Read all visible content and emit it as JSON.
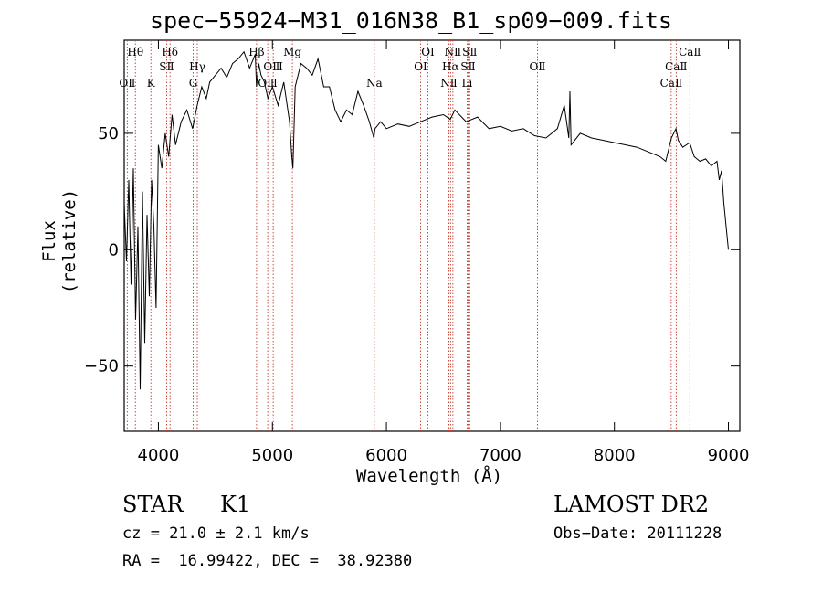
{
  "chart_data": {
    "type": "line",
    "title": "spec−55924−M31_016N38_B1_sp09−009.fits",
    "xlabel": "Wavelength (Å)",
    "ylabel": "Flux (relative)",
    "xlim": [
      3700,
      9100
    ],
    "ylim": [
      -78,
      90
    ],
    "xticks": [
      4000,
      5000,
      6000,
      7000,
      8000,
      9000
    ],
    "yticks": [
      -50,
      0,
      50
    ],
    "ytick_labels": [
      "−50",
      "0",
      "50"
    ],
    "series": [
      {
        "name": "flux",
        "x": [
          3700,
          3720,
          3740,
          3760,
          3780,
          3800,
          3820,
          3840,
          3860,
          3880,
          3900,
          3920,
          3940,
          3960,
          3980,
          4000,
          4030,
          4060,
          4090,
          4120,
          4150,
          4200,
          4250,
          4300,
          4340,
          4380,
          4420,
          4450,
          4500,
          4550,
          4600,
          4650,
          4700,
          4750,
          4800,
          4850,
          4860,
          4880,
          4900,
          4930,
          4960,
          5000,
          5050,
          5100,
          5150,
          5170,
          5180,
          5200,
          5250,
          5300,
          5350,
          5400,
          5450,
          5500,
          5550,
          5600,
          5650,
          5700,
          5750,
          5800,
          5850,
          5890,
          5900,
          5950,
          6000,
          6100,
          6200,
          6300,
          6400,
          6500,
          6560,
          6600,
          6700,
          6800,
          6900,
          7000,
          7100,
          7200,
          7300,
          7400,
          7500,
          7560,
          7600,
          7610,
          7620,
          7700,
          7800,
          7900,
          8000,
          8100,
          8200,
          8300,
          8400,
          8450,
          8500,
          8540,
          8560,
          8600,
          8660,
          8700,
          8750,
          8800,
          8850,
          8900,
          8920,
          8940,
          8960,
          8980,
          9000
        ],
        "y": [
          20,
          -5,
          30,
          -15,
          35,
          -30,
          10,
          -60,
          25,
          -40,
          15,
          -20,
          30,
          10,
          -25,
          45,
          35,
          50,
          40,
          58,
          45,
          55,
          60,
          52,
          62,
          70,
          65,
          72,
          75,
          78,
          74,
          80,
          82,
          85,
          78,
          84,
          70,
          80,
          75,
          72,
          65,
          70,
          62,
          72,
          55,
          40,
          35,
          70,
          80,
          78,
          75,
          82,
          70,
          70,
          60,
          55,
          60,
          58,
          68,
          62,
          55,
          48,
          52,
          55,
          52,
          54,
          53,
          55,
          57,
          58,
          56,
          60,
          55,
          57,
          52,
          53,
          51,
          52,
          49,
          48,
          52,
          62,
          48,
          68,
          45,
          50,
          48,
          47,
          46,
          45,
          44,
          42,
          40,
          38,
          48,
          52,
          47,
          44,
          46,
          40,
          38,
          39,
          36,
          38,
          30,
          34,
          20,
          10,
          0
        ]
      }
    ],
    "lines": [
      {
        "name": "OⅡ",
        "wl": 3727,
        "row": 3
      },
      {
        "name": "Hθ",
        "wl": 3798,
        "row": 1
      },
      {
        "name": "K",
        "wl": 3934,
        "row": 3
      },
      {
        "name": "SⅡ",
        "wl": 4072,
        "row": 2
      },
      {
        "name": "Hδ",
        "wl": 4102,
        "row": 1
      },
      {
        "name": "G",
        "wl": 4305,
        "row": 3
      },
      {
        "name": "Hγ",
        "wl": 4341,
        "row": 2
      },
      {
        "name": "Hβ",
        "wl": 4861,
        "row": 1
      },
      {
        "name": "OⅢ",
        "wl": 4959,
        "row": 3
      },
      {
        "name": "OⅢ",
        "wl": 5007,
        "row": 2
      },
      {
        "name": "Mg",
        "wl": 5175,
        "row": 1
      },
      {
        "name": "Na",
        "wl": 5894,
        "row": 3
      },
      {
        "name": "OⅠ",
        "wl": 6300,
        "row": 2
      },
      {
        "name": "OⅠ",
        "wl": 6364,
        "row": 1
      },
      {
        "name": "NⅡ",
        "wl": 6548,
        "row": 3
      },
      {
        "name": "Hα",
        "wl": 6563,
        "row": 2
      },
      {
        "name": "NⅡ",
        "wl": 6583,
        "row": 1
      },
      {
        "name": "Li",
        "wl": 6708,
        "row": 3
      },
      {
        "name": "SⅡ",
        "wl": 6716,
        "row": 2
      },
      {
        "name": "SⅡ",
        "wl": 6731,
        "row": 1
      },
      {
        "name": "OⅡ",
        "wl": 7325,
        "row": 2
      },
      {
        "name": "CaⅡ",
        "wl": 8498,
        "row": 3
      },
      {
        "name": "CaⅡ",
        "wl": 8542,
        "row": 2
      },
      {
        "name": "CaⅡ",
        "wl": 8662,
        "row": 1
      }
    ]
  },
  "info": {
    "class": "STAR",
    "subclass": "K1",
    "survey": "LAMOST DR2",
    "cz": "cz = 21.0 ± 2.1 km/s",
    "obs_date": "Obs−Date: 20111228",
    "radec": "RA =  16.99422, DEC =  38.92380"
  }
}
